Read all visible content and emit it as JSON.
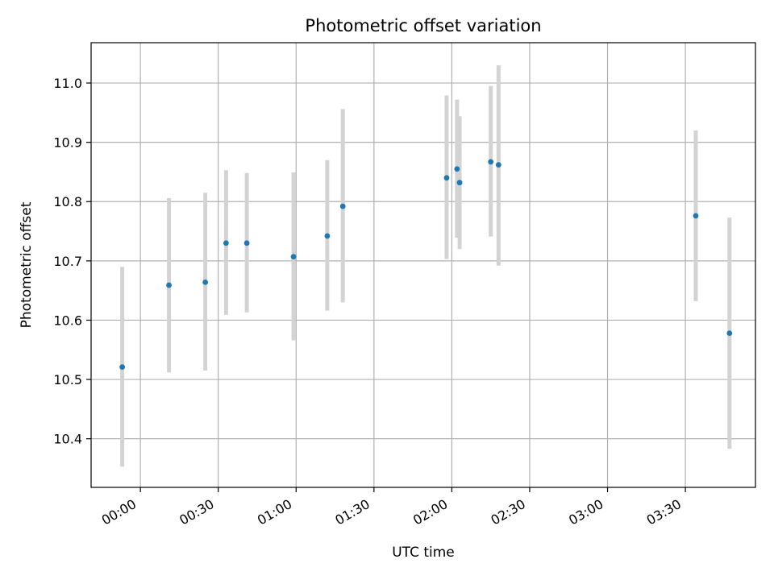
{
  "chart_data": {
    "type": "scatter",
    "title": "Photometric offset variation",
    "xlabel": "UTC time",
    "ylabel": "Photometric offset",
    "x_ticks": [
      "00:00",
      "00:30",
      "01:00",
      "01:30",
      "02:00",
      "02:30",
      "03:00",
      "03:30"
    ],
    "x_tick_minutes": [
      0,
      30,
      60,
      90,
      120,
      150,
      180,
      210
    ],
    "xlim_minutes": [
      -19,
      237
    ],
    "ylim": [
      10.318,
      11.068
    ],
    "y_ticks": [
      10.4,
      10.5,
      10.6,
      10.7,
      10.8,
      10.9,
      11.0
    ],
    "y_tick_labels": [
      "10.4",
      "10.5",
      "10.6",
      "10.7",
      "10.8",
      "10.9",
      "11.0"
    ],
    "grid": true,
    "colors": {
      "marker": "#1f77b4",
      "errorbar": "#d3d3d3",
      "grid": "#b0b0b0"
    },
    "points": [
      {
        "time_min": -7,
        "y": 10.521,
        "ylow": 10.353,
        "yhigh": 10.69
      },
      {
        "time_min": 11,
        "y": 10.659,
        "ylow": 10.512,
        "yhigh": 10.806
      },
      {
        "time_min": 25,
        "y": 10.664,
        "ylow": 10.515,
        "yhigh": 10.815
      },
      {
        "time_min": 33,
        "y": 10.73,
        "ylow": 10.609,
        "yhigh": 10.853
      },
      {
        "time_min": 41,
        "y": 10.73,
        "ylow": 10.613,
        "yhigh": 10.848
      },
      {
        "time_min": 59,
        "y": 10.707,
        "ylow": 10.566,
        "yhigh": 10.849
      },
      {
        "time_min": 72,
        "y": 10.742,
        "ylow": 10.616,
        "yhigh": 10.87
      },
      {
        "time_min": 78,
        "y": 10.792,
        "ylow": 10.63,
        "yhigh": 10.956
      },
      {
        "time_min": 118,
        "y": 10.84,
        "ylow": 10.703,
        "yhigh": 10.979
      },
      {
        "time_min": 122,
        "y": 10.855,
        "ylow": 10.739,
        "yhigh": 10.972
      },
      {
        "time_min": 123,
        "y": 10.832,
        "ylow": 10.72,
        "yhigh": 10.944
      },
      {
        "time_min": 135,
        "y": 10.867,
        "ylow": 10.741,
        "yhigh": 10.995
      },
      {
        "time_min": 138,
        "y": 10.862,
        "ylow": 10.692,
        "yhigh": 11.03
      },
      {
        "time_min": 214,
        "y": 10.776,
        "ylow": 10.632,
        "yhigh": 10.92
      },
      {
        "time_min": 227,
        "y": 10.578,
        "ylow": 10.383,
        "yhigh": 10.773
      }
    ]
  }
}
